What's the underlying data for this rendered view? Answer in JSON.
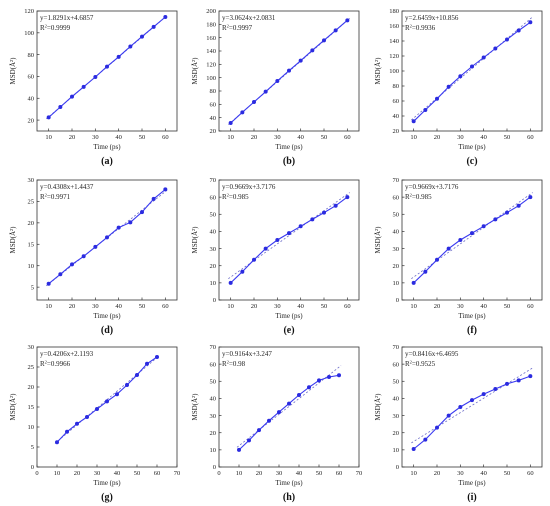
{
  "colors": {
    "series": "#2b2be0",
    "line": "#3a3af0",
    "fit": "#6a6ac8",
    "axis": "#333333"
  },
  "chart_data": [
    {
      "type": "line",
      "panel_label": "(a)",
      "eq": "y=1.8291x+4.6857",
      "r2_prefix": "R",
      "r2_sup": "2",
      "r2_value": "=0.9999",
      "xlabel": "Time (ps)",
      "ylabel": "MSD(Å²)",
      "xlim": [
        5,
        65
      ],
      "ylim": [
        10,
        120
      ],
      "xticks": [
        10,
        20,
        30,
        40,
        50,
        60
      ],
      "yticks": [
        20,
        40,
        60,
        80,
        100,
        120
      ],
      "x": [
        10,
        15,
        20,
        25,
        30,
        35,
        40,
        45,
        50,
        55,
        60
      ],
      "y": [
        22.5,
        32,
        41.5,
        50.5,
        59.5,
        69,
        78,
        87.5,
        96.5,
        105.5,
        114.5
      ],
      "fit": [
        1.8291,
        4.6857
      ]
    },
    {
      "type": "line",
      "panel_label": "(b)",
      "eq": "y=3.0624x+2.0831",
      "r2_prefix": "R",
      "r2_sup": "2",
      "r2_value": "=0.9997",
      "xlabel": "Time (ps)",
      "ylabel": "MSD(Å²)",
      "xlim": [
        5,
        65
      ],
      "ylim": [
        20,
        200
      ],
      "xticks": [
        10,
        20,
        30,
        40,
        50,
        60
      ],
      "yticks": [
        20,
        40,
        60,
        80,
        100,
        120,
        140,
        160,
        180,
        200
      ],
      "x": [
        10,
        15,
        20,
        25,
        30,
        35,
        40,
        45,
        50,
        55,
        60
      ],
      "y": [
        32,
        48,
        63.5,
        79,
        95,
        110.5,
        125.5,
        141,
        156,
        171,
        186
      ],
      "fit": [
        3.0624,
        2.0831
      ]
    },
    {
      "type": "line",
      "panel_label": "(c)",
      "eq": "y=2.6459x+10.856",
      "r2_prefix": "R",
      "r2_sup": "2",
      "r2_value": "=0.9936",
      "xlabel": "Time (ps)",
      "ylabel": "MSD(Å²)",
      "xlim": [
        5,
        65
      ],
      "ylim": [
        20,
        180
      ],
      "xticks": [
        10,
        20,
        30,
        40,
        50,
        60
      ],
      "yticks": [
        20,
        40,
        60,
        80,
        100,
        120,
        140,
        160,
        180
      ],
      "x": [
        10,
        15,
        20,
        25,
        30,
        35,
        40,
        45,
        50,
        55,
        60
      ],
      "y": [
        33,
        48,
        63,
        79,
        93,
        106,
        118,
        130,
        142,
        154,
        165
      ],
      "fit": [
        2.6459,
        10.856
      ]
    },
    {
      "type": "line",
      "panel_label": "(d)",
      "eq": "y=0.4308x+1.4437",
      "r2_prefix": "R",
      "r2_sup": "2",
      "r2_value": "=0.9971",
      "xlabel": "Time (ps)",
      "ylabel": "MSD(Å²)",
      "xlim": [
        5,
        65
      ],
      "ylim": [
        2,
        30
      ],
      "xticks": [
        10,
        20,
        30,
        40,
        50,
        60
      ],
      "yticks": [
        5,
        10,
        15,
        20,
        25,
        30
      ],
      "x": [
        10,
        15,
        20,
        25,
        30,
        35,
        40,
        45,
        50,
        55,
        60
      ],
      "y": [
        5.8,
        8,
        10.3,
        12.2,
        14.4,
        16.6,
        18.9,
        20.1,
        22.5,
        25.6,
        27.8
      ],
      "fit": [
        0.4308,
        1.4437
      ]
    },
    {
      "type": "line",
      "panel_label": "(e)",
      "eq": "y=0.9669x+3.7176",
      "r2_prefix": "R",
      "r2_sup": "2",
      "r2_value": "=0.985",
      "xlabel": "Time (ps)",
      "ylabel": "MSD(Å²)",
      "xlim": [
        5,
        65
      ],
      "ylim": [
        0,
        70
      ],
      "xticks": [
        10,
        20,
        30,
        40,
        50,
        60
      ],
      "yticks": [
        0,
        10,
        20,
        30,
        40,
        50,
        60,
        70
      ],
      "x": [
        10,
        15,
        20,
        25,
        30,
        35,
        40,
        45,
        50,
        55,
        60
      ],
      "y": [
        10,
        16.5,
        23.5,
        30,
        35,
        39,
        43,
        47,
        51,
        55,
        60
      ],
      "fit": [
        0.9669,
        3.7176
      ]
    },
    {
      "type": "line",
      "panel_label": "(f)",
      "eq": "y=0.9669x+3.7176",
      "r2_prefix": "R",
      "r2_sup": "2",
      "r2_value": "=0.985",
      "xlabel": "Time (ps)",
      "ylabel": "MSD(Å²)",
      "xlim": [
        5,
        65
      ],
      "ylim": [
        0,
        70
      ],
      "xticks": [
        10,
        20,
        30,
        40,
        50,
        60
      ],
      "yticks": [
        0,
        10,
        20,
        30,
        40,
        50,
        60,
        70
      ],
      "x": [
        10,
        15,
        20,
        25,
        30,
        35,
        40,
        45,
        50,
        55,
        60
      ],
      "y": [
        10,
        16.5,
        23.5,
        30,
        35,
        39,
        43,
        47,
        51,
        55,
        60
      ],
      "fit": [
        0.9669,
        3.7176
      ]
    },
    {
      "type": "line",
      "panel_label": "(g)",
      "eq": "y=0.4206x+2.1193",
      "r2_prefix": "R",
      "r2_sup": "2",
      "r2_value": "=0.9966",
      "xlabel": "Time (ps)",
      "ylabel": "MSD(Å²)",
      "xlim": [
        0,
        70
      ],
      "ylim": [
        0,
        30
      ],
      "xticks": [
        0,
        10,
        20,
        30,
        40,
        50,
        60,
        70
      ],
      "yticks": [
        0,
        5,
        10,
        15,
        20,
        25,
        30
      ],
      "x": [
        10,
        15,
        20,
        25,
        30,
        35,
        40,
        45,
        50,
        55,
        60
      ],
      "y": [
        6.2,
        8.8,
        10.8,
        12.5,
        14.5,
        16.4,
        18.2,
        20.5,
        23,
        25.8,
        27.5
      ],
      "fit": [
        0.4206,
        2.1193
      ]
    },
    {
      "type": "line",
      "panel_label": "(h)",
      "eq": "y=0.9164x+3.247",
      "r2_prefix": "R",
      "r2_sup": "2",
      "r2_value": "=0.98",
      "xlabel": "Time (ps)",
      "ylabel": "MSD(Å²)",
      "xlim": [
        0,
        70
      ],
      "ylim": [
        0,
        70
      ],
      "xticks": [
        0,
        10,
        20,
        30,
        40,
        50,
        60,
        70
      ],
      "yticks": [
        0,
        10,
        20,
        30,
        40,
        50,
        60,
        70
      ],
      "x": [
        10,
        15,
        20,
        25,
        30,
        35,
        40,
        45,
        50,
        55,
        60
      ],
      "y": [
        10,
        15.5,
        21.5,
        27,
        32,
        37,
        42,
        46.5,
        50.5,
        52.5,
        53.5
      ],
      "fit": [
        0.9164,
        3.247
      ]
    },
    {
      "type": "line",
      "panel_label": "(i)",
      "eq": "y=0.8416x+6.4695",
      "r2_prefix": "R",
      "r2_sup": "2",
      "r2_value": "=0.9525",
      "xlabel": "Time (ps)",
      "ylabel": "MSD(Å²)",
      "xlim": [
        5,
        65
      ],
      "ylim": [
        0,
        70
      ],
      "xticks": [
        10,
        20,
        30,
        40,
        50,
        60
      ],
      "yticks": [
        0,
        10,
        20,
        30,
        40,
        50,
        60,
        70
      ],
      "x": [
        10,
        15,
        20,
        25,
        30,
        35,
        40,
        45,
        50,
        55,
        60
      ],
      "y": [
        10.5,
        16,
        23,
        30,
        35,
        39,
        42.5,
        45.5,
        48.5,
        50.5,
        53
      ],
      "fit": [
        0.8416,
        6.4695
      ]
    }
  ]
}
